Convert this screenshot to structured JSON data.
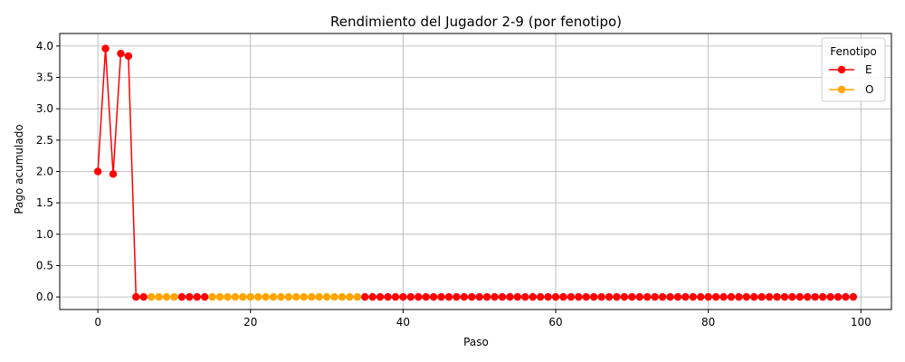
{
  "chart_data": {
    "type": "line",
    "title": "Rendimiento del Jugador 2-9 (por fenotipo)",
    "xlabel": "Paso",
    "ylabel": "Pago acumulado",
    "xlim": [
      -5,
      104
    ],
    "ylim": [
      -0.2,
      4.2
    ],
    "xticks": [
      0,
      20,
      40,
      60,
      80,
      100
    ],
    "yticks": [
      0.0,
      0.5,
      1.0,
      1.5,
      2.0,
      2.5,
      3.0,
      3.5,
      4.0
    ],
    "grid": true,
    "legend": {
      "title": "Fenotipo",
      "placement": "top-right"
    },
    "series": [
      {
        "name": "E",
        "color": "#ff0000",
        "segments": [
          {
            "x": [
              0,
              1,
              2,
              3,
              4,
              5,
              6
            ],
            "y": [
              2.0,
              3.96,
              1.96,
              3.88,
              3.84,
              0.0,
              0.0
            ]
          },
          {
            "x": [
              11,
              12,
              13,
              14
            ],
            "y": [
              0.0,
              0.0,
              0.0,
              0.0
            ]
          },
          {
            "x": [
              35,
              36,
              37,
              38,
              39,
              40,
              41,
              42,
              43,
              44,
              45,
              46,
              47,
              48,
              49,
              50,
              51,
              52,
              53,
              54,
              55,
              56,
              57,
              58,
              59,
              60,
              61,
              62,
              63,
              64,
              65,
              66,
              67,
              68,
              69,
              70,
              71,
              72,
              73,
              74,
              75,
              76,
              77,
              78,
              79,
              80,
              81,
              82,
              83,
              84,
              85,
              86,
              87,
              88,
              89,
              90,
              91,
              92,
              93,
              94,
              95,
              96,
              97,
              98,
              99
            ],
            "y": [
              0,
              0,
              0,
              0,
              0,
              0,
              0,
              0,
              0,
              0,
              0,
              0,
              0,
              0,
              0,
              0,
              0,
              0,
              0,
              0,
              0,
              0,
              0,
              0,
              0,
              0,
              0,
              0,
              0,
              0,
              0,
              0,
              0,
              0,
              0,
              0,
              0,
              0,
              0,
              0,
              0,
              0,
              0,
              0,
              0,
              0,
              0,
              0,
              0,
              0,
              0,
              0,
              0,
              0,
              0,
              0,
              0,
              0,
              0,
              0,
              0,
              0,
              0,
              0,
              0
            ]
          }
        ]
      },
      {
        "name": "O",
        "color": "#ffa500",
        "segments": [
          {
            "x": [
              7,
              8,
              9,
              10
            ],
            "y": [
              0,
              0,
              0,
              0
            ]
          },
          {
            "x": [
              15,
              16,
              17,
              18,
              19,
              20,
              21,
              22,
              23,
              24,
              25,
              26,
              27,
              28,
              29,
              30,
              31,
              32,
              33,
              34
            ],
            "y": [
              0,
              0,
              0,
              0,
              0,
              0,
              0,
              0,
              0,
              0,
              0,
              0,
              0,
              0,
              0,
              0,
              0,
              0,
              0,
              0
            ]
          }
        ]
      }
    ]
  }
}
